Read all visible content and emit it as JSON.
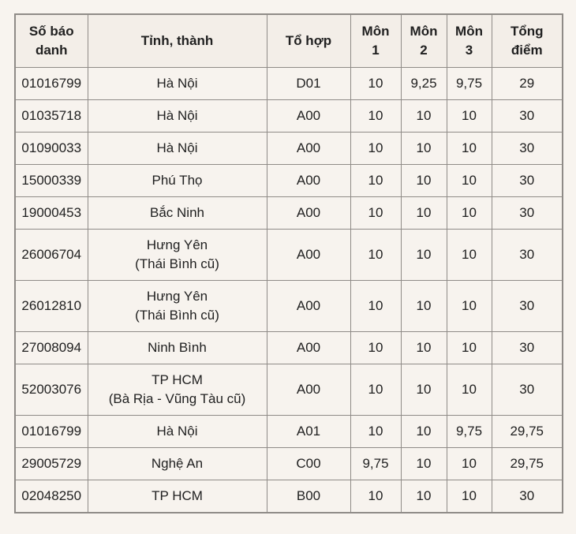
{
  "table": {
    "columns": [
      {
        "key": "candidate_id",
        "label": "Số báo\ndanh"
      },
      {
        "key": "province",
        "label": "Tỉnh, thành"
      },
      {
        "key": "combination",
        "label": "Tổ hợp"
      },
      {
        "key": "score1",
        "label": "Môn\n1"
      },
      {
        "key": "score2",
        "label": "Môn\n2"
      },
      {
        "key": "score3",
        "label": "Môn\n3"
      },
      {
        "key": "total",
        "label": "Tổng\nđiểm"
      }
    ],
    "rows": [
      {
        "candidate_id": "01016799",
        "province": "Hà Nội",
        "province_note": "",
        "combination": "D01",
        "score1": "10",
        "score2": "9,25",
        "score3": "9,75",
        "total": "29"
      },
      {
        "candidate_id": "01035718",
        "province": "Hà Nội",
        "province_note": "",
        "combination": "A00",
        "score1": "10",
        "score2": "10",
        "score3": "10",
        "total": "30"
      },
      {
        "candidate_id": "01090033",
        "province": "Hà Nội",
        "province_note": "",
        "combination": "A00",
        "score1": "10",
        "score2": "10",
        "score3": "10",
        "total": "30"
      },
      {
        "candidate_id": "15000339",
        "province": "Phú Thọ",
        "province_note": "",
        "combination": "A00",
        "score1": "10",
        "score2": "10",
        "score3": "10",
        "total": "30"
      },
      {
        "candidate_id": "19000453",
        "province": "Bắc Ninh",
        "province_note": "",
        "combination": "A00",
        "score1": "10",
        "score2": "10",
        "score3": "10",
        "total": "30"
      },
      {
        "candidate_id": "26006704",
        "province": "Hưng Yên",
        "province_note": "(Thái Bình cũ)",
        "combination": "A00",
        "score1": "10",
        "score2": "10",
        "score3": "10",
        "total": "30"
      },
      {
        "candidate_id": "26012810",
        "province": "Hưng Yên",
        "province_note": "(Thái Bình cũ)",
        "combination": "A00",
        "score1": "10",
        "score2": "10",
        "score3": "10",
        "total": "30"
      },
      {
        "candidate_id": "27008094",
        "province": "Ninh Bình",
        "province_note": "",
        "combination": "A00",
        "score1": "10",
        "score2": "10",
        "score3": "10",
        "total": "30"
      },
      {
        "candidate_id": "52003076",
        "province": "TP HCM",
        "province_note": "(Bà Rịa - Vũng Tàu cũ)",
        "combination": "A00",
        "score1": "10",
        "score2": "10",
        "score3": "10",
        "total": "30"
      },
      {
        "candidate_id": "01016799",
        "province": "Hà Nội",
        "province_note": "",
        "combination": "A01",
        "score1": "10",
        "score2": "10",
        "score3": "9,75",
        "total": "29,75"
      },
      {
        "candidate_id": "29005729",
        "province": "Nghệ An",
        "province_note": "",
        "combination": "C00",
        "score1": "9,75",
        "score2": "10",
        "score3": "10",
        "total": "29,75"
      },
      {
        "candidate_id": "02048250",
        "province": "TP HCM",
        "province_note": "",
        "combination": "B00",
        "score1": "10",
        "score2": "10",
        "score3": "10",
        "total": "30"
      }
    ]
  },
  "colors": {
    "page_background": "#f8f4ef",
    "cell_background": "#f7f3ee",
    "header_background": "#f3eee8",
    "border": "#8f8b87",
    "text": "#212121"
  }
}
